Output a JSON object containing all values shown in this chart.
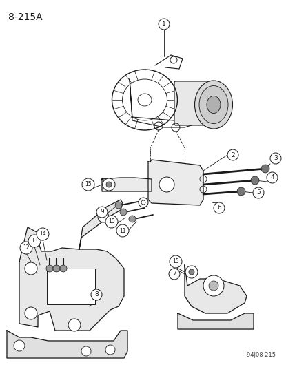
{
  "title_label": "8-215A",
  "footer_label": "94J08 215",
  "background_color": "#f5f5f0",
  "line_color": "#1a1a1a",
  "fig_w": 4.15,
  "fig_h": 5.33,
  "dpi": 100
}
